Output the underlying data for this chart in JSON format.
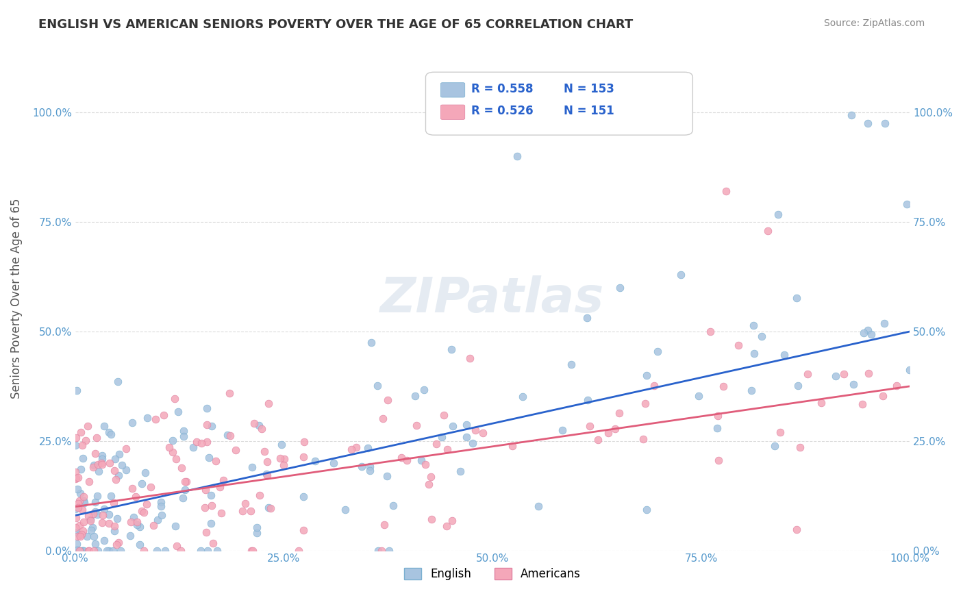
{
  "title": "ENGLISH VS AMERICAN SENIORS POVERTY OVER THE AGE OF 65 CORRELATION CHART",
  "source": "Source: ZipAtlas.com",
  "ylabel": "Seniors Poverty Over the Age of 65",
  "english_R": 0.558,
  "english_N": 153,
  "american_R": 0.526,
  "american_N": 151,
  "english_color": "#a8c4e0",
  "american_color": "#f4a7b9",
  "english_line_color": "#2962cc",
  "american_line_color": "#e05c7a",
  "background_color": "#ffffff",
  "title_color": "#333333",
  "axis_label_color": "#5599cc",
  "legend_r_color": "#2962cc",
  "xlim": [
    0.0,
    1.0
  ],
  "ylim": [
    0.0,
    1.15
  ],
  "yticks": [
    0.0,
    0.25,
    0.5,
    0.75,
    1.0
  ],
  "xticks": [
    0.0,
    0.25,
    0.5,
    0.75,
    1.0
  ],
  "english_trend_start": 0.08,
  "english_trend_end": 0.5,
  "american_trend_start": 0.1,
  "american_trend_end": 0.375
}
